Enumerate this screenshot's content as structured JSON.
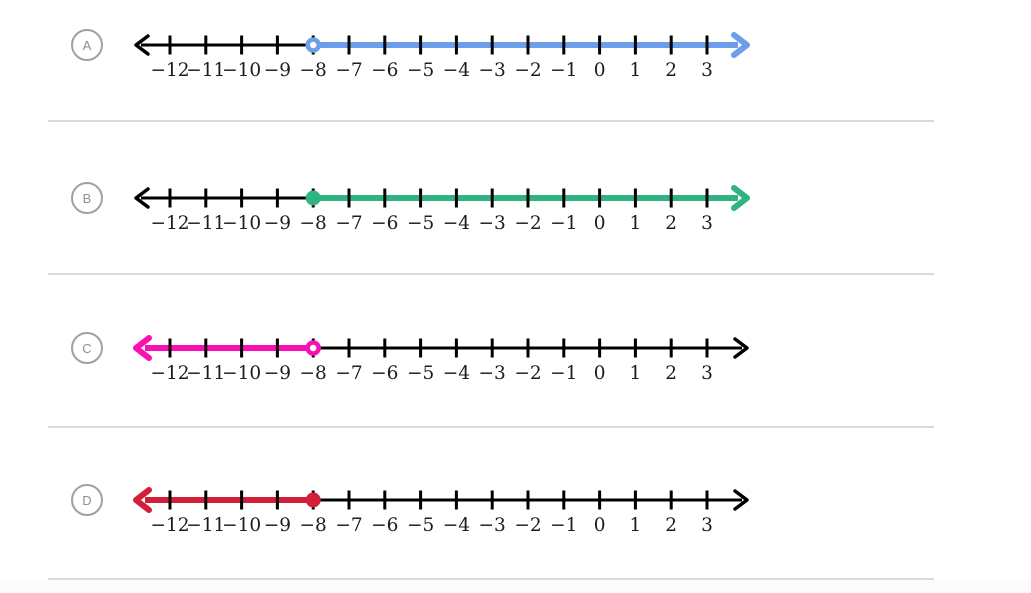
{
  "axis": {
    "min": -12,
    "max": 3,
    "tick_labels": [
      "−12",
      "−11",
      "−10",
      "−9",
      "−8",
      "−7",
      "−6",
      "−5",
      "−4",
      "−3",
      "−2",
      "−1",
      "0",
      "1",
      "2",
      "3"
    ],
    "line_color": "#000000",
    "label_color": "#1c1c1c"
  },
  "question_options": [
    {
      "label": "A",
      "line": {
        "color": "#6d9eeb",
        "endpoint": -8,
        "marker": "open",
        "direction": "right"
      }
    },
    {
      "label": "B",
      "line": {
        "color": "#2fb380",
        "endpoint": -8,
        "marker": "closed",
        "direction": "right"
      }
    },
    {
      "label": "C",
      "line": {
        "color": "#f711b5",
        "endpoint": -8,
        "marker": "open",
        "direction": "left"
      }
    },
    {
      "label": "D",
      "line": {
        "color": "#d12038",
        "endpoint": -8,
        "marker": "closed",
        "direction": "left"
      }
    }
  ]
}
